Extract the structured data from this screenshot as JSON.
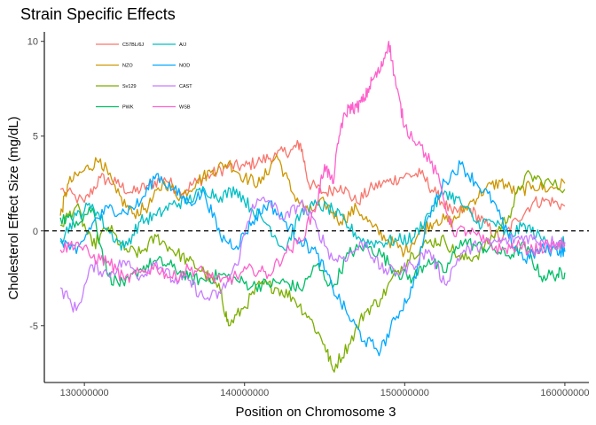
{
  "chart_data": {
    "type": "line",
    "title": "Strain Specific Effects",
    "xlabel": "Position on Chromosome 3",
    "ylabel": "Cholesterol Effect Size (mg/dL)",
    "xlim": [
      127500000,
      161500000
    ],
    "ylim": [
      -8.0,
      10.5
    ],
    "x_ticks": [
      130000000,
      140000000,
      150000000,
      160000000
    ],
    "y_ticks": [
      -5,
      0,
      5,
      10
    ],
    "reference_line": {
      "y": 0,
      "style": "dashed"
    },
    "grid": false,
    "legend": "top-left, inside plot, two columns",
    "series": [
      {
        "name": "C57BL/6J",
        "color": "#F8766D",
        "x": [
          128500000,
          130000000,
          131000000,
          132000000,
          133000000,
          134000000,
          135000000,
          136000000,
          137000000,
          138000000,
          139000000,
          140000000,
          141000000,
          142000000,
          143000000,
          143500000,
          144000000,
          145000000,
          146000000,
          147000000,
          148000000,
          149000000,
          150000000,
          151000000,
          152000000,
          153000000,
          154000000,
          155000000,
          156000000,
          157000000,
          158000000,
          159000000,
          160000000
        ],
        "y": [
          2.2,
          1.5,
          2.8,
          2.5,
          2.0,
          2.4,
          2.8,
          2.0,
          2.6,
          3.0,
          3.4,
          3.4,
          3.7,
          4.0,
          4.3,
          4.6,
          2.5,
          2.0,
          2.4,
          1.5,
          2.3,
          2.6,
          2.9,
          3.0,
          1.9,
          0.9,
          1.2,
          0.4,
          -0.5,
          0.6,
          1.5,
          1.6,
          1.3
        ]
      },
      {
        "name": "NZO",
        "color": "#CD9600",
        "x": [
          128500000,
          129000000,
          130000000,
          131000000,
          132000000,
          133000000,
          134000000,
          135000000,
          136000000,
          137000000,
          138000000,
          139000000,
          140000000,
          141000000,
          142000000,
          143000000,
          144000000,
          145000000,
          146000000,
          147000000,
          148000000,
          149000000,
          150000000,
          151000000,
          152000000,
          153000000,
          154000000,
          155000000,
          156000000,
          157000000,
          158000000,
          159000000,
          160000000
        ],
        "y": [
          0.8,
          2.5,
          3.2,
          3.8,
          2.0,
          0.9,
          1.3,
          2.6,
          1.8,
          2.6,
          3.2,
          3.6,
          2.8,
          2.5,
          4.0,
          2.0,
          1.0,
          1.5,
          0.5,
          1.2,
          0.2,
          -0.5,
          -1.1,
          0.0,
          0.6,
          0.5,
          1.4,
          2.2,
          2.6,
          2.0,
          2.4,
          2.2,
          2.5
        ]
      },
      {
        "name": "Sv129",
        "color": "#7CAE00",
        "x": [
          128500000,
          129500000,
          130500000,
          131500000,
          132500000,
          133500000,
          134500000,
          135500000,
          136500000,
          137500000,
          138500000,
          139000000,
          140000000,
          141000000,
          142000000,
          143000000,
          144000000,
          145000000,
          145500000,
          146500000,
          147500000,
          148500000,
          149500000,
          150500000,
          151500000,
          152500000,
          153500000,
          154500000,
          155500000,
          156500000,
          157500000,
          158500000,
          160000000
        ],
        "y": [
          0.3,
          1.3,
          -0.8,
          0.2,
          -1.0,
          -1.2,
          -0.3,
          -1.0,
          -1.6,
          -2.2,
          -3.2,
          -5.0,
          -4.0,
          -2.8,
          -3.0,
          -3.5,
          -4.5,
          -6.0,
          -7.3,
          -6.0,
          -4.3,
          -3.6,
          -2.2,
          -1.2,
          -0.6,
          -0.5,
          -1.5,
          -1.3,
          -0.3,
          0.8,
          2.9,
          2.7,
          2.2
        ]
      },
      {
        "name": "PWK",
        "color": "#00BE67",
        "x": [
          128500000,
          129500000,
          130500000,
          131500000,
          132500000,
          133500000,
          134500000,
          135500000,
          136500000,
          137500000,
          138500000,
          139500000,
          140500000,
          141500000,
          142500000,
          143500000,
          144500000,
          145500000,
          146500000,
          147500000,
          148500000,
          149500000,
          150500000,
          151500000,
          152500000,
          153500000,
          154500000,
          155500000,
          156500000,
          157500000,
          158500000,
          159500000,
          160000000
        ],
        "y": [
          0.7,
          0.5,
          1.2,
          -2.4,
          -2.9,
          -2.0,
          -1.6,
          -1.9,
          -2.5,
          -2.6,
          -2.3,
          -2.6,
          -2.9,
          -2.8,
          -2.7,
          -3.1,
          -1.8,
          -3.0,
          -1.2,
          -0.8,
          -1.2,
          -2.2,
          -2.5,
          -1.5,
          -2.2,
          -0.5,
          -0.8,
          -1.0,
          -1.3,
          -0.8,
          -2.4,
          -2.3,
          -2.2
        ]
      },
      {
        "name": "A/J",
        "color": "#00BFC4",
        "x": [
          128500000,
          129500000,
          130500000,
          131500000,
          132500000,
          133500000,
          134500000,
          135500000,
          136500000,
          137500000,
          138500000,
          139500000,
          140500000,
          141500000,
          142500000,
          143500000,
          144500000,
          145500000,
          146500000,
          147500000,
          148500000,
          149500000,
          150500000,
          151500000,
          152500000,
          153500000,
          154500000,
          155500000,
          156500000,
          157500000,
          158500000,
          159500000,
          160000000
        ],
        "y": [
          -0.5,
          0.8,
          1.4,
          0.0,
          -0.9,
          0.5,
          0.8,
          1.4,
          1.6,
          2.2,
          1.8,
          2.2,
          1.1,
          0.3,
          -1.0,
          0.9,
          1.4,
          1.1,
          0.2,
          -0.6,
          -0.6,
          -0.5,
          -0.4,
          0.9,
          2.1,
          1.5,
          0.4,
          0.5,
          -0.3,
          0.3,
          -0.4,
          -0.8,
          -0.6
        ]
      },
      {
        "name": "NOD",
        "color": "#00A9FF",
        "x": [
          128500000,
          129500000,
          130500000,
          131500000,
          132500000,
          133500000,
          134500000,
          135500000,
          136500000,
          137500000,
          138500000,
          139500000,
          140500000,
          141500000,
          142500000,
          143500000,
          144500000,
          145500000,
          146500000,
          147500000,
          148500000,
          149500000,
          150500000,
          151500000,
          152500000,
          153500000,
          154500000,
          155500000,
          156500000,
          157500000,
          158500000,
          159500000,
          160000000
        ],
        "y": [
          -0.4,
          -1.2,
          0.4,
          1.2,
          1.0,
          1.5,
          3.0,
          2.2,
          1.5,
          2.0,
          -0.3,
          -0.8,
          0.5,
          1.5,
          0.5,
          -0.5,
          -1.2,
          -3.0,
          -4.5,
          -5.8,
          -6.3,
          -4.5,
          -3.0,
          0.8,
          2.6,
          3.5,
          2.5,
          1.6,
          -0.4,
          -1.5,
          -1.0,
          -1.0,
          -1.1
        ]
      },
      {
        "name": "CAST",
        "color": "#C77CFF",
        "x": [
          128500000,
          129500000,
          130500000,
          131500000,
          132500000,
          133500000,
          134500000,
          135500000,
          136500000,
          137500000,
          138500000,
          139500000,
          140500000,
          141500000,
          142500000,
          143500000,
          144500000,
          145500000,
          146500000,
          147500000,
          148500000,
          149500000,
          150500000,
          151500000,
          152500000,
          153500000,
          154500000,
          155500000,
          156500000,
          157500000,
          158500000,
          159500000,
          160000000
        ],
        "y": [
          -3.0,
          -4.2,
          -1.8,
          -2.3,
          -1.6,
          -2.4,
          -1.6,
          -2.6,
          -2.6,
          -3.6,
          -3.3,
          -1.8,
          1.4,
          1.6,
          0.6,
          1.5,
          0.2,
          -1.5,
          -1.3,
          -0.6,
          -2.0,
          -2.2,
          -1.8,
          -1.0,
          -2.8,
          -1.2,
          -0.8,
          -0.6,
          -0.5,
          -0.3,
          -0.5,
          -0.6,
          -0.6
        ]
      },
      {
        "name": "WSB",
        "color": "#FF61CC",
        "x": [
          128500000,
          129500000,
          130500000,
          131500000,
          132500000,
          133500000,
          134500000,
          135500000,
          136500000,
          137500000,
          138500000,
          139500000,
          140500000,
          141500000,
          142500000,
          143500000,
          144500000,
          145000000,
          145500000,
          146000000,
          146500000,
          147000000,
          147500000,
          148000000,
          148500000,
          149000000,
          149500000,
          150000000,
          151000000,
          152000000,
          153000000,
          154000000,
          155000000,
          156000000,
          157000000,
          158000000,
          159000000,
          160000000
        ],
        "y": [
          -1.0,
          -0.6,
          -1.4,
          -1.6,
          -2.6,
          -2.2,
          -1.9,
          -2.5,
          -2.0,
          -2.2,
          -2.7,
          -2.4,
          -2.0,
          -2.3,
          -1.2,
          -0.5,
          1.4,
          3.5,
          2.5,
          5.5,
          6.5,
          6.5,
          7.0,
          8.0,
          8.5,
          10.0,
          7.5,
          5.5,
          4.5,
          3.0,
          0.0,
          0.0,
          -0.6,
          -1.0,
          -0.8,
          -1.0,
          -0.8,
          -0.8
        ]
      }
    ]
  }
}
